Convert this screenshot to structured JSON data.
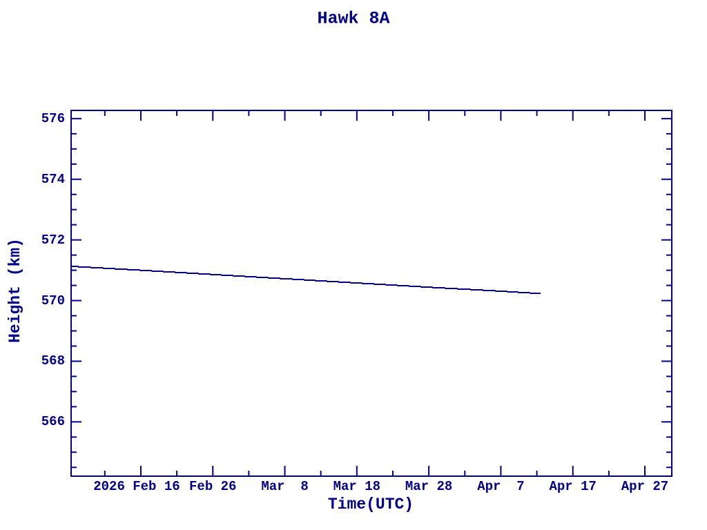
{
  "page": {
    "background_color": "#ffffff",
    "accent_color": "#00008B"
  },
  "chart_data": {
    "type": "line",
    "title": "Hawk 8A",
    "xlabel": "Time(UTC)",
    "ylabel": "Height (km)",
    "line_color": "#00008B",
    "grid": false,
    "legend": "none",
    "x_axis": {
      "epoch": "2026-02-06",
      "range_days": [
        0.32,
        83.74
      ],
      "major_tick_days": [
        10,
        20,
        30,
        40,
        50,
        60,
        70,
        80
      ],
      "minor_tick_days": [
        5,
        15,
        25,
        35,
        45,
        55,
        65,
        75
      ],
      "tick_labels": [
        {
          "label": "2026 Feb 16",
          "day": 10,
          "dx": -6
        },
        {
          "label": "Feb 26",
          "day": 20,
          "dx": 0
        },
        {
          "label": "Mar  8",
          "day": 30,
          "dx": 0
        },
        {
          "label": "Mar 18",
          "day": 40,
          "dx": 0
        },
        {
          "label": "Mar 28",
          "day": 50,
          "dx": 0
        },
        {
          "label": "Apr  7",
          "day": 60,
          "dx": 0
        },
        {
          "label": "Apr 17",
          "day": 70,
          "dx": 0
        },
        {
          "label": "Apr 27",
          "day": 80,
          "dx": 0
        }
      ]
    },
    "y_axis": {
      "range_km": [
        564.21,
        576.27
      ],
      "major_ticks_km": [
        566,
        568,
        570,
        572,
        574,
        576
      ],
      "minor_step_km": 0.5
    },
    "series": [
      {
        "name": "height",
        "points": [
          {
            "day": 0.32,
            "km": 571.13
          },
          {
            "day": 10,
            "km": 571.0
          },
          {
            "day": 20,
            "km": 570.86
          },
          {
            "day": 30,
            "km": 570.72
          },
          {
            "day": 40,
            "km": 570.58
          },
          {
            "day": 50,
            "km": 570.44
          },
          {
            "day": 60,
            "km": 570.31
          },
          {
            "day": 65.5,
            "km": 570.23
          }
        ]
      }
    ]
  }
}
